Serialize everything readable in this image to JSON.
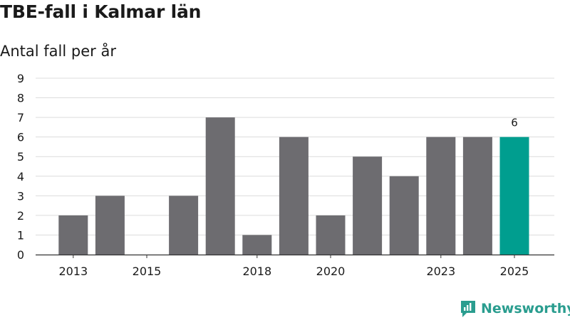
{
  "title": "TBE-fall i Kalmar län",
  "subtitle": "Antal fall per år",
  "brand": {
    "name": "Newsworthy",
    "logo_icon": "newsworthy-logo-icon",
    "color": "#2a9d8f"
  },
  "chart_data": {
    "type": "bar",
    "title": "TBE-fall i Kalmar län",
    "subtitle": "Antal fall per år",
    "categories": [
      "2013",
      "2014",
      "2015",
      "2016",
      "2017",
      "2018",
      "2019",
      "2020",
      "2021",
      "2022",
      "2023",
      "2024",
      "2025"
    ],
    "values": [
      2,
      3,
      0,
      3,
      7,
      1,
      6,
      2,
      5,
      4,
      6,
      6,
      6
    ],
    "x_tick_labels": [
      "2013",
      "2015",
      "2018",
      "2020",
      "2023",
      "2025"
    ],
    "y_ticks": [
      0,
      1,
      2,
      3,
      4,
      5,
      6,
      7,
      8,
      9
    ],
    "ylim": [
      0,
      9
    ],
    "grid": true,
    "bar_color": "#6d6c70",
    "highlight_color": "#009e8f",
    "highlight_category": "2025",
    "data_labels": [
      {
        "category": "2025",
        "value": 6
      }
    ]
  }
}
